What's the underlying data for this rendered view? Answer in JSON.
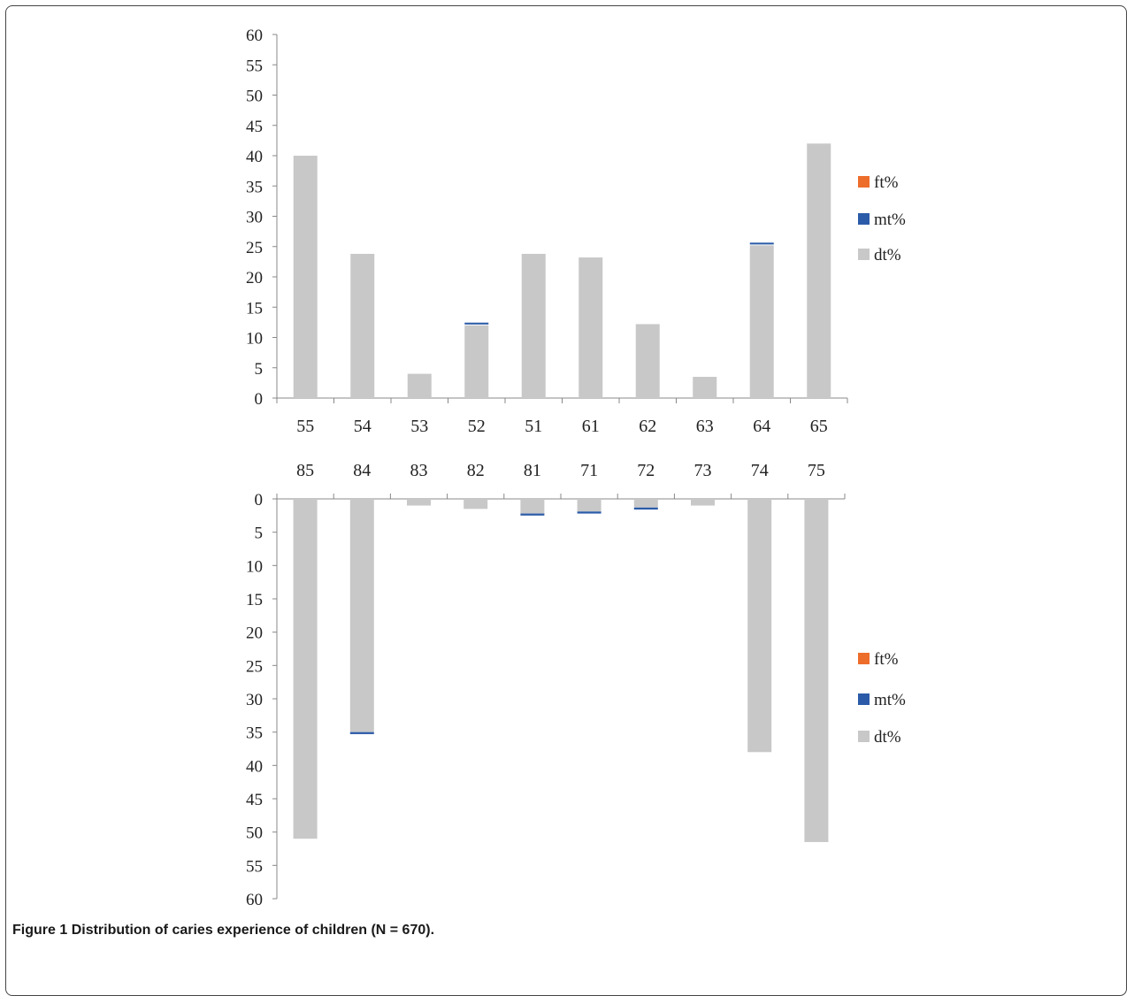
{
  "caption": {
    "label": "Figure 1",
    "text": "Distribution of caries experience of children (N = 670)."
  },
  "colors": {
    "ft": "#ED6D2B",
    "mt": "#2B5BA8",
    "dt": "#C8C8C8"
  },
  "chart_data": [
    {
      "type": "bar",
      "stacked": true,
      "orientation": "upward",
      "categories": [
        "55",
        "54",
        "53",
        "52",
        "51",
        "61",
        "62",
        "63",
        "64",
        "65"
      ],
      "ylim": [
        0,
        60
      ],
      "yticks": [
        0,
        5,
        10,
        15,
        20,
        25,
        30,
        35,
        40,
        45,
        50,
        55,
        60
      ],
      "series": [
        {
          "name": "dt%",
          "values": [
            40,
            23.8,
            4,
            12,
            23.8,
            23.2,
            12.2,
            3.5,
            25.2,
            42
          ]
        },
        {
          "name": "mt%",
          "values": [
            0,
            0,
            0,
            0.3,
            0,
            0,
            0,
            0,
            0.3,
            0
          ]
        },
        {
          "name": "ft%",
          "values": [
            0,
            0,
            0,
            0,
            0,
            0,
            0,
            0,
            0,
            0
          ]
        }
      ],
      "legend": [
        "ft%",
        "mt%",
        "dt%"
      ],
      "legend_position": "right"
    },
    {
      "type": "bar",
      "stacked": true,
      "orientation": "downward",
      "categories": [
        "85",
        "84",
        "83",
        "82",
        "81",
        "71",
        "72",
        "73",
        "74",
        "75"
      ],
      "ylim": [
        0,
        60
      ],
      "yticks": [
        0,
        5,
        10,
        15,
        20,
        25,
        30,
        35,
        40,
        45,
        50,
        55,
        60
      ],
      "series": [
        {
          "name": "dt%",
          "values": [
            51,
            35,
            1,
            1.5,
            2.2,
            1.9,
            1.3,
            1,
            38,
            51.5
          ]
        },
        {
          "name": "mt%",
          "values": [
            0,
            0.3,
            0,
            0,
            0.3,
            0.3,
            0.3,
            0,
            0,
            0
          ]
        },
        {
          "name": "ft%",
          "values": [
            0,
            0,
            0,
            0,
            0,
            0,
            0,
            0,
            0,
            0
          ]
        }
      ],
      "legend": [
        "ft%",
        "mt%",
        "dt%"
      ],
      "legend_position": "right"
    }
  ]
}
